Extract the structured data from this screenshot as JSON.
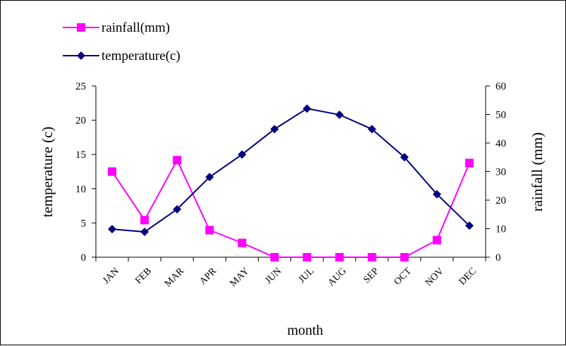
{
  "chart_data": {
    "type": "line",
    "categories": [
      "JAN",
      "FEB",
      "MAR",
      "APR",
      "MAY",
      "JUN",
      "JUL",
      "AUG",
      "SEP",
      "OCT",
      "NOV",
      "DEC"
    ],
    "series": [
      {
        "name": "rainfall(mm)",
        "axis": "right",
        "color": "#ff00ff",
        "marker": "square",
        "values": [
          30,
          13,
          34,
          9.5,
          5,
          0,
          0,
          0,
          0,
          0,
          6,
          33
        ]
      },
      {
        "name": "temperature(c)",
        "axis": "left",
        "color": "#000080",
        "marker": "diamond",
        "values": [
          4.1,
          3.7,
          7.0,
          11.7,
          15.0,
          18.7,
          21.7,
          20.8,
          18.7,
          14.6,
          9.2,
          4.6
        ]
      }
    ],
    "xlabel": "month",
    "ylabel_left": "temperature (c)",
    "ylabel_right": "rainfall (mm)",
    "ylim_left": [
      0,
      25
    ],
    "ylim_right": [
      0,
      60
    ],
    "yticks_left": [
      "0",
      "5",
      "10",
      "15",
      "20",
      "25"
    ],
    "yticks_right": [
      "0",
      "10",
      "20",
      "30",
      "40",
      "50",
      "60"
    ],
    "grid": false,
    "legend_position": "top-left"
  }
}
